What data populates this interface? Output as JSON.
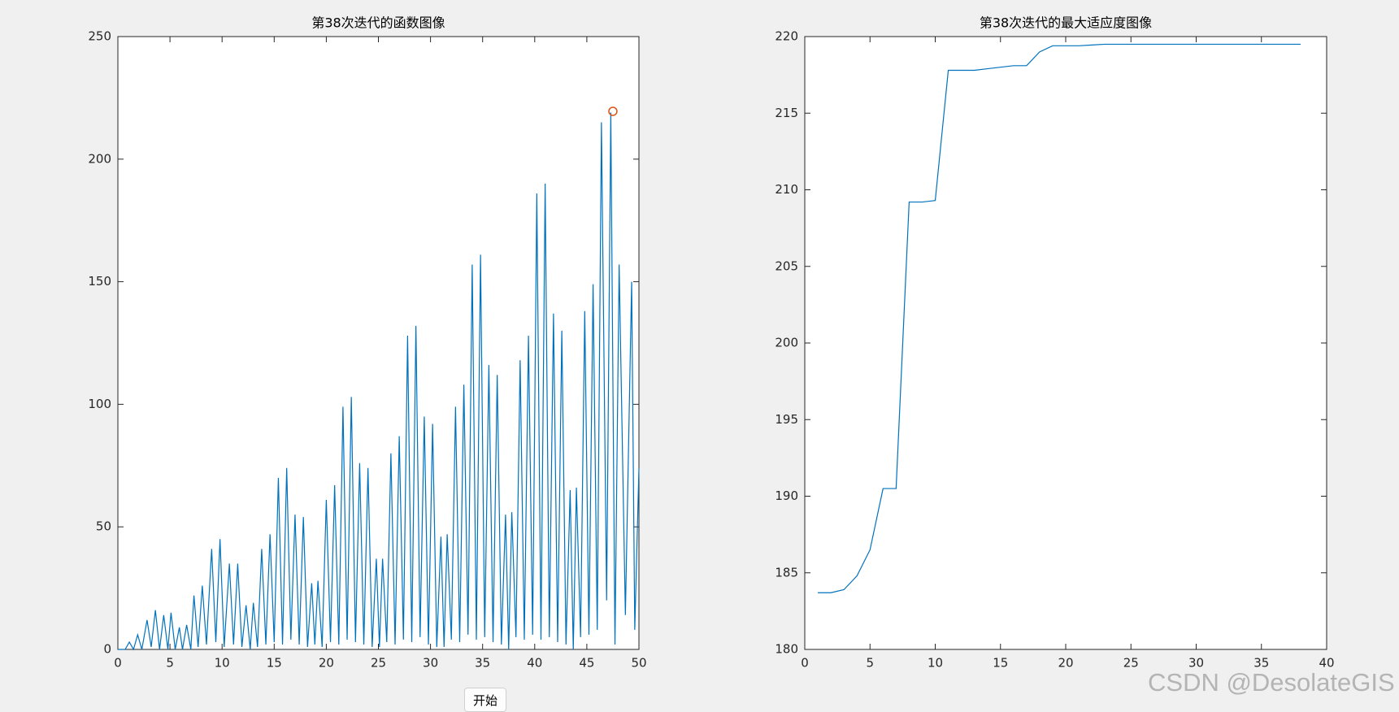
{
  "chart_data": [
    {
      "type": "line",
      "title": "第38次迭代的函数图像",
      "xlim": [
        0,
        50
      ],
      "xticks": [
        0,
        5,
        10,
        15,
        20,
        25,
        30,
        35,
        40,
        45,
        50
      ],
      "ylim": [
        0,
        250
      ],
      "yticks": [
        0,
        50,
        100,
        150,
        200,
        250
      ],
      "series": [
        {
          "color": "#0072bd",
          "marker": "none",
          "x": [
            0,
            0.7,
            1.1,
            1.5,
            1.9,
            2.3,
            2.8,
            3.2,
            3.6,
            4.0,
            4.4,
            4.8,
            5.1,
            5.5,
            5.9,
            6.2,
            6.6,
            7.0,
            7.3,
            7.7,
            8.1,
            8.5,
            9.0,
            9.4,
            9.8,
            10.2,
            10.7,
            11.1,
            11.5,
            11.9,
            12.3,
            12.7,
            13.0,
            13.4,
            13.8,
            14.2,
            14.6,
            15.0,
            15.4,
            15.8,
            16.2,
            16.6,
            17.0,
            17.4,
            17.8,
            18.2,
            18.6,
            18.9,
            19.2,
            19.6,
            20.0,
            20.4,
            20.8,
            21.2,
            21.6,
            22.0,
            22.4,
            22.8,
            23.2,
            23.6,
            24.0,
            24.4,
            24.8,
            25.1,
            25.4,
            25.8,
            26.2,
            26.6,
            27.0,
            27.4,
            27.8,
            28.2,
            28.6,
            29.0,
            29.4,
            29.8,
            30.2,
            30.6,
            31.0,
            31.3,
            31.6,
            32.0,
            32.4,
            32.8,
            33.2,
            33.6,
            34.0,
            34.4,
            34.8,
            35.2,
            35.6,
            36.0,
            36.4,
            36.8,
            37.2,
            37.5,
            37.8,
            38.2,
            38.6,
            39.0,
            39.4,
            39.8,
            40.2,
            40.6,
            41.0,
            41.4,
            41.8,
            42.2,
            42.6,
            43.0,
            43.4,
            43.7,
            44.0,
            44.4,
            44.8,
            45.2,
            45.6,
            46.0,
            46.4,
            46.9,
            47.3,
            47.7,
            48.1,
            48.7,
            49.3,
            49.6,
            50
          ],
          "values": [
            0,
            0,
            3,
            0,
            6,
            0,
            12,
            1,
            16,
            0,
            14,
            0,
            15,
            0,
            9,
            0,
            10,
            0,
            22,
            1,
            26,
            2,
            41,
            3,
            45,
            1,
            35,
            2,
            35,
            1,
            18,
            0,
            19,
            1,
            41,
            2,
            47,
            3,
            70,
            2,
            74,
            4,
            55,
            2,
            54,
            1,
            27,
            2,
            28,
            1,
            61,
            3,
            67,
            2,
            99,
            4,
            103,
            3,
            76,
            2,
            74,
            1,
            37,
            1,
            37,
            3,
            80,
            2,
            87,
            4,
            128,
            3,
            132,
            5,
            95,
            2,
            92,
            1,
            46,
            1,
            47,
            4,
            99,
            3,
            108,
            6,
            157,
            4,
            161,
            5,
            116,
            3,
            112,
            2,
            55,
            0,
            56,
            5,
            118,
            4,
            128,
            6,
            186,
            4,
            190,
            5,
            137,
            3,
            130,
            2,
            65,
            0,
            66,
            5,
            138,
            6,
            149,
            8,
            215,
            20,
            219,
            2,
            157,
            14,
            150,
            8,
            74
          ]
        },
        {
          "color": "#d95319",
          "marker": "circle",
          "x": [
            47.5
          ],
          "values": [
            219.5
          ]
        }
      ]
    },
    {
      "type": "line",
      "title": "第38次迭代的最大适应度图像",
      "xlim": [
        0,
        40
      ],
      "xticks": [
        0,
        5,
        10,
        15,
        20,
        25,
        30,
        35,
        40
      ],
      "ylim": [
        180,
        220
      ],
      "yticks": [
        180,
        185,
        190,
        195,
        200,
        205,
        210,
        215,
        220
      ],
      "series": [
        {
          "color": "#0072bd",
          "marker": "none",
          "x": [
            1,
            2,
            3,
            4,
            5,
            6,
            7,
            8,
            9,
            10,
            11,
            12,
            13,
            14,
            15,
            16,
            17,
            18,
            19,
            20,
            21,
            22,
            23,
            24,
            25,
            26,
            27,
            28,
            29,
            30,
            31,
            32,
            33,
            34,
            35,
            36,
            37,
            38
          ],
          "values": [
            183.7,
            183.7,
            183.9,
            184.8,
            186.5,
            190.5,
            190.5,
            209.2,
            209.2,
            209.3,
            217.8,
            217.8,
            217.8,
            217.9,
            218.0,
            218.1,
            218.1,
            219.0,
            219.4,
            219.4,
            219.4,
            219.45,
            219.5,
            219.5,
            219.5,
            219.5,
            219.5,
            219.5,
            219.5,
            219.5,
            219.5,
            219.5,
            219.5,
            219.5,
            219.5,
            219.5,
            219.5,
            219.5
          ]
        }
      ]
    }
  ],
  "button": "开始",
  "watermark": "CSDN @DesolateGIS"
}
